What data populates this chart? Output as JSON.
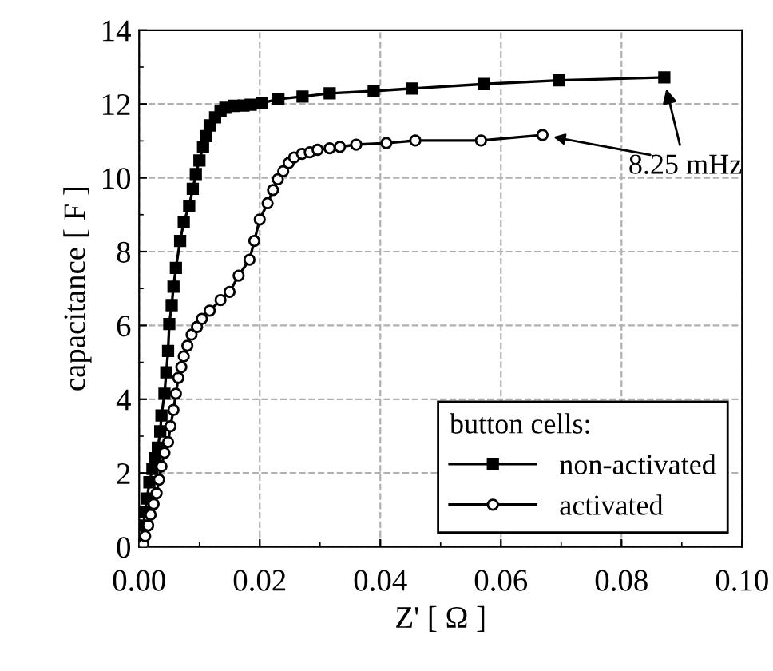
{
  "chart_data": {
    "type": "line",
    "xlabel": "Z' [ Ω ]",
    "ylabel": "capacitance [ F ]",
    "legend_title": "button cells:",
    "xlim": [
      0,
      0.1
    ],
    "ylim": [
      0,
      14
    ],
    "xticks": [
      {
        "value": 0,
        "label": "0.00"
      },
      {
        "value": 0.02,
        "label": "0.02"
      },
      {
        "value": 0.04,
        "label": "0.04"
      },
      {
        "value": 0.06,
        "label": "0.06"
      },
      {
        "value": 0.08,
        "label": "0.08"
      },
      {
        "value": 0.1,
        "label": "0.10"
      }
    ],
    "yticks": [
      0,
      2,
      4,
      6,
      8,
      10,
      12,
      14
    ],
    "grid": true,
    "legend": "bottom right",
    "line_style": "solid",
    "annotations": [
      {
        "text": "8.25 mHz",
        "x": 0.087,
        "y": 12.7
      }
    ],
    "series": [
      {
        "name": "non-activated",
        "color": "#000000",
        "marker": "square",
        "x": [
          0.0004,
          0.0007,
          0.001,
          0.0013,
          0.0017,
          0.0022,
          0.0026,
          0.0031,
          0.0035,
          0.0037,
          0.0042,
          0.0045,
          0.0048,
          0.005,
          0.0054,
          0.0057,
          0.0061,
          0.0068,
          0.0074,
          0.0083,
          0.0089,
          0.0094,
          0.01,
          0.0106,
          0.0111,
          0.0117,
          0.0126,
          0.0135,
          0.0143,
          0.0157,
          0.0173,
          0.0185,
          0.0204,
          0.0231,
          0.0271,
          0.0316,
          0.0389,
          0.0453,
          0.0572,
          0.0696,
          0.0871
        ],
        "values": [
          0.22,
          0.58,
          0.95,
          1.31,
          1.75,
          2.11,
          2.4,
          2.69,
          3.13,
          3.56,
          4.15,
          4.73,
          5.31,
          6.04,
          6.55,
          7.05,
          7.56,
          8.29,
          8.8,
          9.24,
          9.7,
          10.1,
          10.47,
          10.84,
          11.13,
          11.42,
          11.64,
          11.81,
          11.9,
          11.95,
          11.96,
          11.98,
          12.03,
          12.13,
          12.2,
          12.29,
          12.35,
          12.42,
          12.54,
          12.64,
          12.72
        ]
      },
      {
        "name": "activated",
        "color": "#000000",
        "marker": "circle",
        "x": [
          0.0007,
          0.001,
          0.0015,
          0.0019,
          0.0024,
          0.0029,
          0.0033,
          0.0037,
          0.0042,
          0.0048,
          0.0052,
          0.0057,
          0.0061,
          0.0065,
          0.007,
          0.0074,
          0.008,
          0.0087,
          0.0096,
          0.0104,
          0.0117,
          0.0135,
          0.015,
          0.0165,
          0.0183,
          0.0191,
          0.02,
          0.0213,
          0.0222,
          0.023,
          0.0239,
          0.0248,
          0.0257,
          0.027,
          0.0283,
          0.0296,
          0.0316,
          0.0333,
          0.036,
          0.041,
          0.0458,
          0.0567,
          0.0669
        ],
        "values": [
          0.07,
          0.29,
          0.58,
          0.87,
          1.16,
          1.45,
          1.82,
          2.18,
          2.55,
          2.84,
          3.27,
          3.71,
          4.15,
          4.58,
          4.87,
          5.16,
          5.45,
          5.75,
          5.96,
          6.18,
          6.4,
          6.69,
          6.91,
          7.35,
          7.78,
          8.29,
          8.87,
          9.31,
          9.67,
          9.96,
          10.18,
          10.4,
          10.55,
          10.65,
          10.69,
          10.76,
          10.8,
          10.84,
          10.9,
          10.94,
          11.01,
          11.01,
          11.16
        ]
      }
    ]
  }
}
